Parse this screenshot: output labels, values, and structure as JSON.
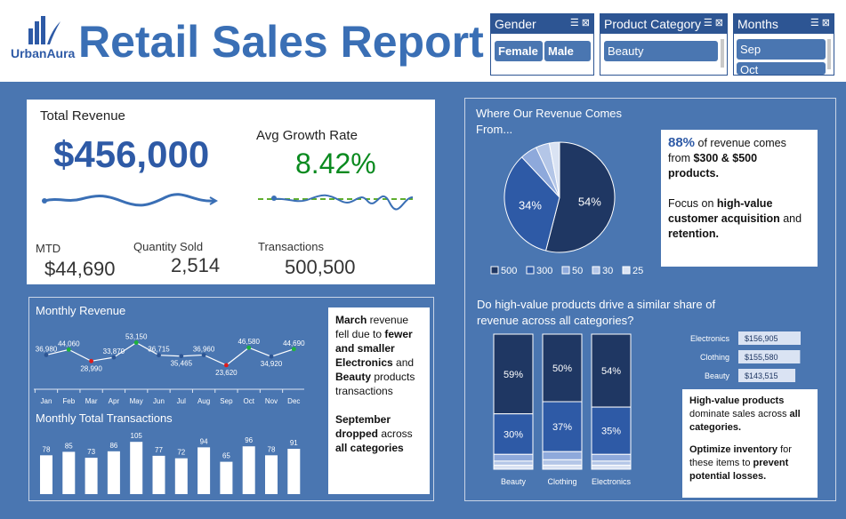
{
  "header": {
    "logo_text": "UrbanAura",
    "title": "Retail Sales Report"
  },
  "slicers": {
    "gender": {
      "title": "Gender",
      "items": [
        "Female",
        "Male"
      ]
    },
    "category": {
      "title": "Product Category",
      "items": [
        "Beauty"
      ]
    },
    "months": {
      "title": "Months",
      "items": [
        "Sep",
        "Oct"
      ]
    }
  },
  "kpi": {
    "total_revenue_label": "Total Revenue",
    "total_revenue_value": "$456,000",
    "growth_label": "Avg Growth Rate",
    "growth_value": "8.42%",
    "mtd_label": "MTD",
    "mtd_value": "$44,690",
    "qty_label": "Quantity Sold",
    "qty_value": "2,514",
    "trans_label": "Transactions",
    "trans_value": "500,500",
    "colors": {
      "revenue": "#2e5aa6",
      "growth": "#0a8a1f"
    }
  },
  "monthly": {
    "revenue_title": "Monthly Revenue",
    "transactions_title": "Monthly Total Transactions",
    "callout_html_parts": {
      "p1_bold1": "March",
      "p1_t1": " revenue fell due to ",
      "p1_bold2": "fewer and smaller Electronics",
      "p1_t2": " and ",
      "p1_bold3": "Beauty",
      "p1_t3": " products transactions",
      "p2_bold1": "September dropped",
      "p2_t1": " across ",
      "p2_bold2": "all categories"
    }
  },
  "revenue_source": {
    "title_line1": "Where Our Revenue Comes",
    "title_line2": "From...",
    "callout": {
      "pct": "88%",
      "t1": " of revenue comes from ",
      "b1": "$300 & $500 products.",
      "t2": "Focus on ",
      "b2": "high-value customer acquisition",
      "t3": " and ",
      "b3": "retention."
    }
  },
  "share": {
    "title_line1": "Do high-value products drive a similar share of",
    "title_line2": "revenue across all categories?",
    "callout": {
      "b1": "High-value products",
      "t1": " dominate sales across ",
      "b2": "all categories.",
      "b3": "Optimize inventory",
      "t2": " for these items to ",
      "b4": "prevent potential losses."
    }
  },
  "chart_data": [
    {
      "type": "line",
      "title": "Monthly Revenue",
      "categories": [
        "Jan",
        "Feb",
        "Mar",
        "Apr",
        "May",
        "Jun",
        "Jul",
        "Aug",
        "Sep",
        "Oct",
        "Nov",
        "Dec"
      ],
      "values": [
        36980,
        44060,
        28990,
        33870,
        53150,
        36715,
        35465,
        36960,
        23620,
        46580,
        34920,
        44690
      ],
      "labels": [
        "36,980",
        "44,060",
        "28,990",
        "33,870",
        "53,150",
        "36,715",
        "35,465",
        "36,960",
        "23,620",
        "46,580",
        "34,920",
        "44,690"
      ],
      "point_colors": [
        "#2d5593",
        "#1db33a",
        "#e01b1b",
        "#2d5593",
        "#1db33a",
        "#2d5593",
        "#2d5593",
        "#2d5593",
        "#e01b1b",
        "#1db33a",
        "#2d5593",
        "#1db33a"
      ]
    },
    {
      "type": "bar",
      "title": "Monthly Total Transactions",
      "categories": [
        "Jan",
        "Feb",
        "Mar",
        "Apr",
        "May",
        "Jun",
        "Jul",
        "Aug",
        "Sep",
        "Oct",
        "Nov",
        "Dec"
      ],
      "values": [
        78,
        85,
        73,
        86,
        105,
        77,
        72,
        94,
        65,
        96,
        78,
        91
      ]
    },
    {
      "type": "pie",
      "title": "Where Our Revenue Comes From...",
      "categories": [
        "500",
        "300",
        "50",
        "30",
        "25"
      ],
      "values": [
        54,
        34,
        5,
        4,
        3
      ],
      "slice_labels": [
        "54%",
        "34%",
        "",
        "",
        ""
      ],
      "colors": [
        "#1f3763",
        "#2e5aa6",
        "#8ea9db",
        "#b4c6e7",
        "#dae3f3"
      ]
    },
    {
      "type": "bar",
      "title": "Do high-value products drive a similar share of revenue across all categories?",
      "categories": [
        "Beauty",
        "Clothing",
        "Electronics"
      ],
      "series": [
        {
          "name": "500",
          "values": [
            59,
            50,
            54
          ],
          "labels": [
            "59%",
            "50%",
            "54%"
          ],
          "color": "#1f3763"
        },
        {
          "name": "300",
          "values": [
            30,
            37,
            35
          ],
          "labels": [
            "30%",
            "37%",
            "35%"
          ],
          "color": "#2e5aa6"
        },
        {
          "name": "50",
          "values": [
            5,
            6,
            5
          ],
          "labels": [
            "",
            "",
            ""
          ],
          "color": "#8ea9db"
        },
        {
          "name": "30",
          "values": [
            3,
            4,
            3
          ],
          "labels": [
            "",
            "",
            ""
          ],
          "color": "#b4c6e7"
        },
        {
          "name": "25",
          "values": [
            3,
            3,
            3
          ],
          "labels": [
            "",
            "",
            ""
          ],
          "color": "#dae3f3"
        }
      ]
    },
    {
      "type": "bar",
      "title": "",
      "categories": [
        "Electronics",
        "Clothing",
        "Beauty"
      ],
      "values": [
        156905,
        155580,
        143515
      ],
      "labels": [
        "$156,905",
        "$155,580",
        "$143,515"
      ]
    }
  ]
}
